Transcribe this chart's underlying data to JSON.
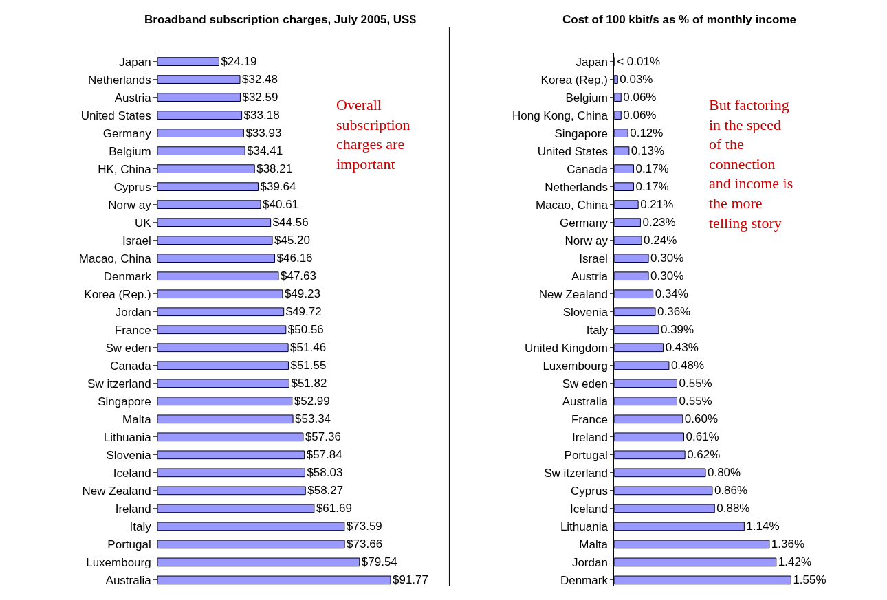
{
  "chart_data": [
    {
      "type": "bar",
      "orientation": "horizontal",
      "title": "Broadband subscription charges, July 2005, US$",
      "tick_labels": "y",
      "categories": [
        "Japan",
        "Netherlands",
        "Austria",
        "United States",
        "Germany",
        "Belgium",
        "HK, China",
        "Cyprus",
        "Norw ay",
        "UK",
        "Israel",
        "Macao, China",
        "Denmark",
        "Korea (Rep.)",
        "Jordan",
        "France",
        "Sw eden",
        "Canada",
        "Sw itzerland",
        "Singapore",
        "Malta",
        "Lithuania",
        "Slovenia",
        "Iceland",
        "New Zealand",
        "Ireland",
        "Italy",
        "Portugal",
        "Luxembourg",
        "Australia"
      ],
      "values": [
        24.19,
        32.48,
        32.59,
        33.18,
        33.93,
        34.41,
        38.21,
        39.64,
        40.61,
        44.56,
        45.2,
        46.16,
        47.63,
        49.23,
        49.72,
        50.56,
        51.46,
        51.55,
        51.82,
        52.99,
        53.34,
        57.36,
        57.84,
        58.03,
        58.27,
        61.69,
        73.59,
        73.66,
        79.54,
        91.77
      ],
      "value_labels": [
        "$24.19",
        "$32.48",
        "$32.59",
        "$33.18",
        "$33.93",
        "$34.41",
        "$38.21",
        "$39.64",
        "$40.61",
        "$44.56",
        "$45.20",
        "$46.16",
        "$47.63",
        "$49.23",
        "$49.72",
        "$50.56",
        "$51.46",
        "$51.55",
        "$51.82",
        "$52.99",
        "$53.34",
        "$57.36",
        "$57.84",
        "$58.03",
        "$58.27",
        "$61.69",
        "$73.59",
        "$73.66",
        "$79.54",
        "$91.77"
      ],
      "color": "#9999ff",
      "annotations": [
        "Overall subscription charges are important"
      ]
    },
    {
      "type": "bar",
      "orientation": "horizontal",
      "title": "Cost of 100 kbit/s as % of monthly income",
      "tick_labels": "y",
      "categories": [
        "Japan",
        "Korea (Rep.)",
        "Belgium",
        "Hong Kong, China",
        "Singapore",
        "United States",
        "Canada",
        "Netherlands",
        "Macao, China",
        "Germany",
        "Norw ay",
        "Israel",
        "Austria",
        "New Zealand",
        "Slovenia",
        "Italy",
        "United Kingdom",
        "Luxembourg",
        "Sw eden",
        "Australia",
        "France",
        "Ireland",
        "Portugal",
        "Sw itzerland",
        "Cyprus",
        "Iceland",
        "Lithuania",
        "Malta",
        "Jordan",
        "Denmark"
      ],
      "values": [
        0.005,
        0.03,
        0.06,
        0.06,
        0.12,
        0.13,
        0.17,
        0.17,
        0.21,
        0.23,
        0.24,
        0.3,
        0.3,
        0.34,
        0.36,
        0.39,
        0.43,
        0.48,
        0.55,
        0.55,
        0.6,
        0.61,
        0.62,
        0.8,
        0.86,
        0.88,
        1.14,
        1.36,
        1.42,
        1.55
      ],
      "value_labels": [
        "< 0.01%",
        "0.03%",
        "0.06%",
        "0.06%",
        "0.12%",
        "0.13%",
        "0.17%",
        "0.17%",
        "0.21%",
        "0.23%",
        "0.24%",
        "0.30%",
        "0.30%",
        "0.34%",
        "0.36%",
        "0.39%",
        "0.43%",
        "0.48%",
        "0.55%",
        "0.55%",
        "0.60%",
        "0.61%",
        "0.62%",
        "0.80%",
        "0.86%",
        "0.88%",
        "1.14%",
        "1.36%",
        "1.42%",
        "1.55%"
      ],
      "color": "#9999ff",
      "annotations": [
        "But factoring in the speed of the connection and income is the more telling story"
      ]
    }
  ]
}
